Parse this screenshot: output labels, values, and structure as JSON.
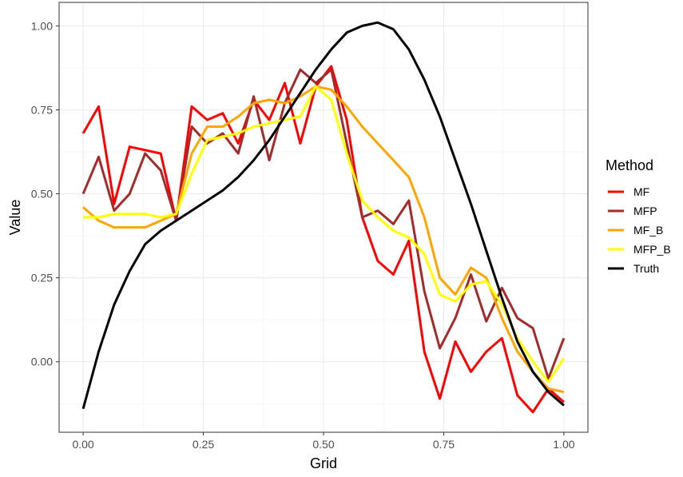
{
  "chart_data": {
    "type": "line",
    "title": "",
    "xlabel": "Grid",
    "ylabel": "Value",
    "xlim": [
      -0.05,
      1.05
    ],
    "ylim": [
      -0.21,
      1.07
    ],
    "x_ticks": [
      0,
      0.25,
      0.5,
      0.75,
      1.0
    ],
    "x_tick_labels": [
      "0.00",
      "0.25",
      "0.50",
      "0.75",
      "1.00"
    ],
    "y_ticks": [
      0,
      0.25,
      0.5,
      0.75,
      1.0
    ],
    "y_tick_labels": [
      "0.00",
      "0.25",
      "0.50",
      "0.75",
      "1.00"
    ],
    "grid": true,
    "legend": {
      "title": "Method",
      "position": "right"
    },
    "x": [
      0,
      0.0323,
      0.0645,
      0.0968,
      0.129,
      0.1613,
      0.1935,
      0.2258,
      0.2581,
      0.2903,
      0.3226,
      0.3548,
      0.3871,
      0.4194,
      0.4516,
      0.4839,
      0.5161,
      0.5484,
      0.5806,
      0.6129,
      0.6452,
      0.6774,
      0.7097,
      0.7419,
      0.7742,
      0.8065,
      0.8387,
      0.871,
      0.9032,
      0.9355,
      0.9677,
      1.0
    ],
    "series": [
      {
        "name": "MF",
        "color": "#ff0000",
        "values": [
          0.68,
          0.76,
          0.47,
          0.64,
          0.63,
          0.62,
          0.42,
          0.76,
          0.72,
          0.74,
          0.65,
          0.78,
          0.72,
          0.83,
          0.65,
          0.82,
          0.88,
          0.72,
          0.43,
          0.3,
          0.26,
          0.36,
          0.03,
          -0.11,
          0.06,
          -0.03,
          0.03,
          0.07,
          -0.1,
          -0.15,
          -0.08,
          -0.12
        ]
      },
      {
        "name": "MFP",
        "color": "#a52a2a",
        "values": [
          0.5,
          0.61,
          0.45,
          0.5,
          0.62,
          0.57,
          0.42,
          0.7,
          0.65,
          0.68,
          0.62,
          0.79,
          0.6,
          0.77,
          0.87,
          0.83,
          0.87,
          0.65,
          0.43,
          0.45,
          0.41,
          0.48,
          0.21,
          0.04,
          0.13,
          0.26,
          0.12,
          0.22,
          0.13,
          0.1,
          -0.05,
          0.07
        ]
      },
      {
        "name": "MF_B",
        "color": "#ffa500",
        "values": [
          0.46,
          0.42,
          0.4,
          0.4,
          0.4,
          0.42,
          0.44,
          0.62,
          0.7,
          0.7,
          0.73,
          0.77,
          0.78,
          0.77,
          0.79,
          0.82,
          0.81,
          0.76,
          0.7,
          0.65,
          0.6,
          0.55,
          0.43,
          0.25,
          0.2,
          0.28,
          0.25,
          0.13,
          0.03,
          -0.03,
          -0.08,
          -0.09
        ]
      },
      {
        "name": "MFP_B",
        "color": "#ffff00",
        "values": [
          0.43,
          0.43,
          0.44,
          0.44,
          0.44,
          0.43,
          0.44,
          0.56,
          0.66,
          0.67,
          0.68,
          0.7,
          0.71,
          0.72,
          0.73,
          0.82,
          0.78,
          0.62,
          0.48,
          0.43,
          0.39,
          0.37,
          0.32,
          0.2,
          0.18,
          0.23,
          0.24,
          0.17,
          0.07,
          0.0,
          -0.06,
          0.01
        ]
      },
      {
        "name": "Truth",
        "color": "#000000",
        "values": [
          -0.14,
          0.03,
          0.17,
          0.27,
          0.35,
          0.39,
          0.42,
          0.45,
          0.48,
          0.51,
          0.55,
          0.6,
          0.66,
          0.73,
          0.8,
          0.87,
          0.93,
          0.98,
          1.0,
          1.01,
          0.99,
          0.93,
          0.84,
          0.73,
          0.6,
          0.47,
          0.33,
          0.19,
          0.06,
          -0.03,
          -0.09,
          -0.13
        ]
      }
    ]
  }
}
